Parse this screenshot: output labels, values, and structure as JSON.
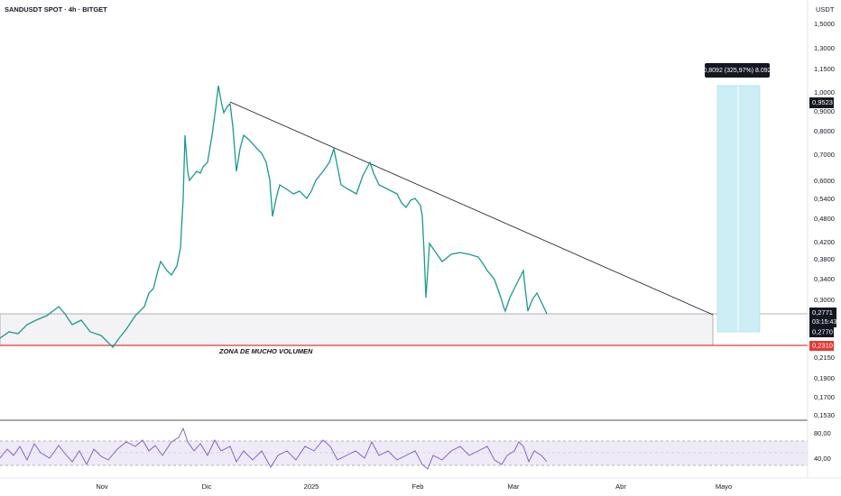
{
  "header": {
    "symbol": "SANDUSDT SPOT · 4h · BITGET",
    "currency": "USDT"
  },
  "price_axis": [
    "1,5000",
    "1,3000",
    "1,1500",
    "1,0000",
    "0,9000",
    "0,8000",
    "0,7000",
    "0,6000",
    "0,5400",
    "0,4800",
    "0,4200",
    "0,3800",
    "0,3400",
    "0,3000",
    "0,2150",
    "0,1900",
    "0,1700",
    "0,1530"
  ],
  "price_tags": {
    "target": "0,9523",
    "last": "0,2771",
    "countdown": "03:15:43",
    "entry": "0,2770",
    "support": "0,2310"
  },
  "position_label": "0,8092 (325,97%) 8.092",
  "annotation": "ZONA DE MUCHO VOLUMEN",
  "rsi_axis": [
    "80,00",
    "40,00"
  ],
  "time_axis": [
    "Nov",
    "Dic",
    "2025",
    "Feb",
    "Mar",
    "Abr",
    "Mayo"
  ]
}
